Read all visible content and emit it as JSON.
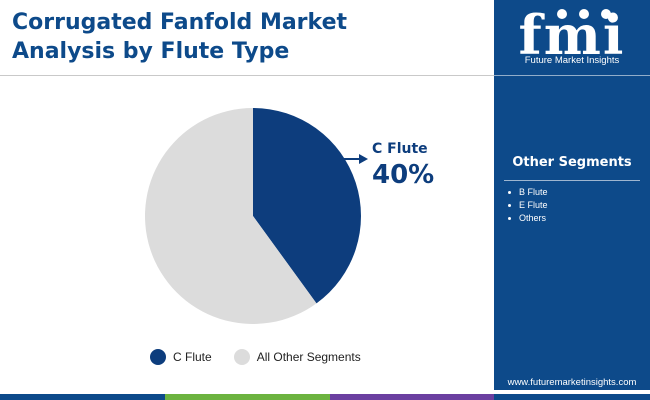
{
  "title": {
    "line1": "Corrugated Fanfold Market",
    "line2": "Analysis by Flute Type"
  },
  "chart_data": {
    "type": "pie",
    "slices": [
      {
        "label": "C Flute",
        "value": 40,
        "color": "#0d3d7d"
      },
      {
        "label": "All Other Segments",
        "value": 60,
        "color": "#dcdcdc"
      }
    ],
    "callout": {
      "label": "C Flute",
      "value_text": "40%"
    },
    "legend": [
      "C Flute",
      "All Other Segments"
    ],
    "legend_placement": "bottom"
  },
  "sidebar": {
    "brand_letters": "fmi",
    "brand_name": "Future Market Insights",
    "segments_title": "Other Segments",
    "segments": [
      "B Flute",
      "E Flute",
      "Others"
    ],
    "website": "www.futuremarketinsights.com"
  },
  "colors": {
    "brand_blue": "#0d4a8a",
    "slice_dark": "#0d3d7d",
    "slice_light": "#dcdcdc",
    "bar_segments": [
      "#0d4a8a",
      "#6cb33f",
      "#6b3fa0",
      "#0d4a8a"
    ]
  }
}
